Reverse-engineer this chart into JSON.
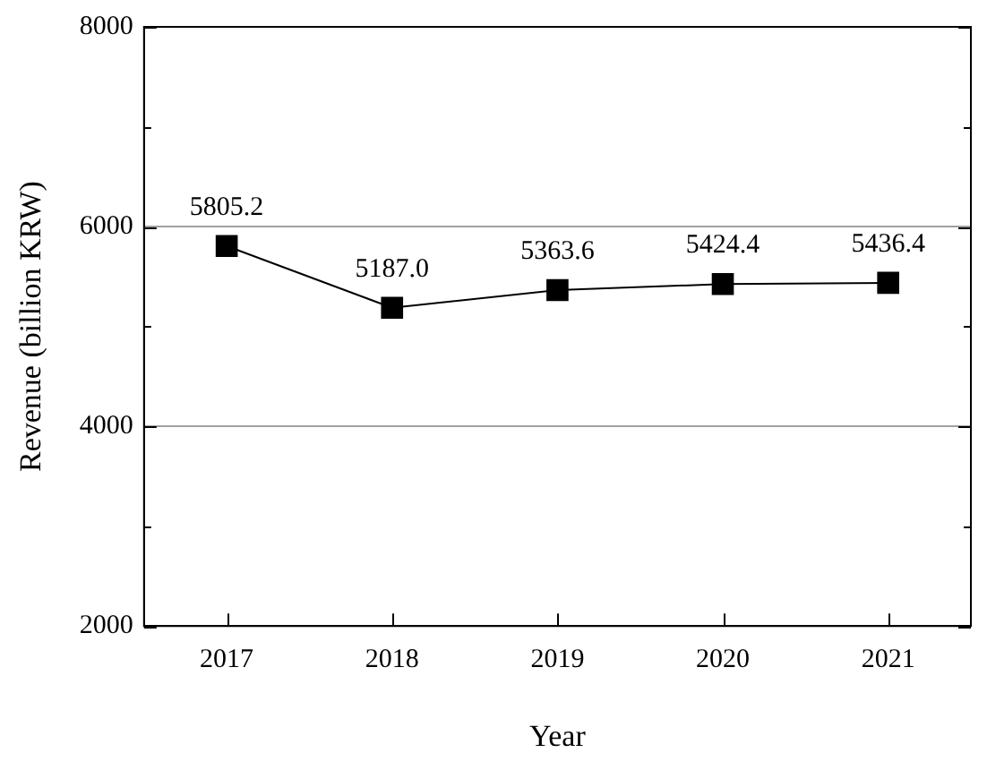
{
  "chart_data": {
    "type": "line",
    "xlabel": "Year",
    "ylabel": "Revenue (billion KRW)",
    "categories": [
      "2017",
      "2018",
      "2019",
      "2020",
      "2021"
    ],
    "series": [
      {
        "color": "#000000",
        "values": [
          5805.2,
          5187.0,
          5363.6,
          5424.4,
          5436.4
        ],
        "value_labels": [
          "5805.2",
          "5187.0",
          "5363.6",
          "5424.4",
          "5436.4"
        ]
      }
    ],
    "ylim": [
      2000,
      8000
    ],
    "yticks": [
      2000,
      {
        "value": 3000,
        "label": null
      },
      4000,
      {
        "value": 5000,
        "label": null
      },
      6000,
      {
        "value": 7000,
        "label": null
      },
      8000
    ],
    "grid": "y",
    "legend": false,
    "marker": "square",
    "line_style": "solid"
  }
}
